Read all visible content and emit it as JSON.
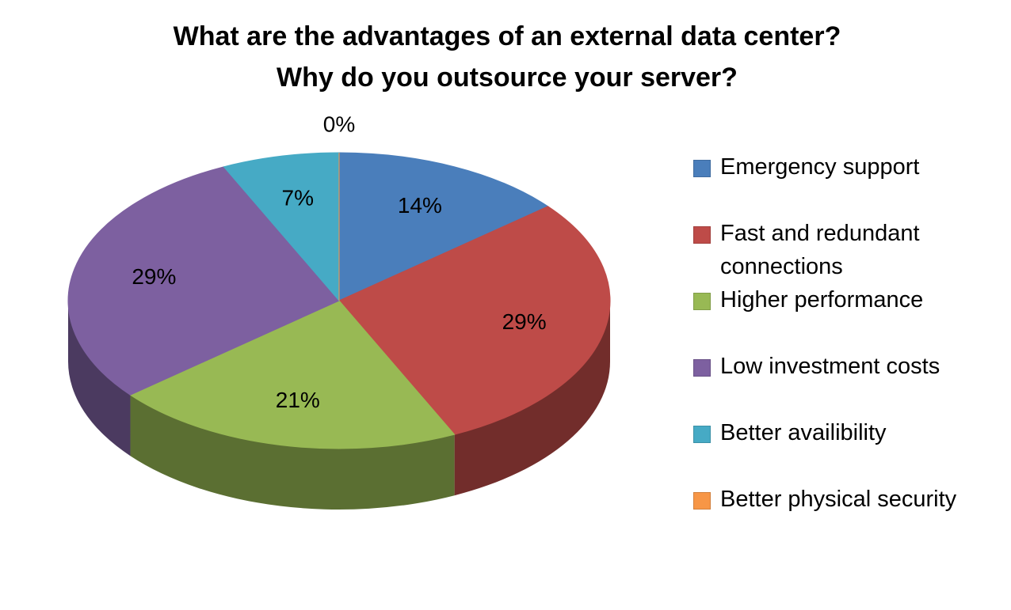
{
  "chart_data": {
    "type": "pie3d",
    "title": [
      "What are the advantages of an external data center?",
      "Why do you outsource your server?"
    ],
    "categories": [
      "Emergency support",
      "Fast and redundant connections",
      "Higher performance",
      "Low investment costs",
      "Better availibility",
      "Better physical security"
    ],
    "values": [
      14,
      29,
      21,
      29,
      7,
      0
    ],
    "value_labels": [
      "14%",
      "29%",
      "21%",
      "29%",
      "7%",
      "0%"
    ],
    "colors": [
      "#4a7ebb",
      "#be4b48",
      "#98b954",
      "#7d60a0",
      "#46aac5",
      "#f79646"
    ],
    "legend": "right"
  }
}
